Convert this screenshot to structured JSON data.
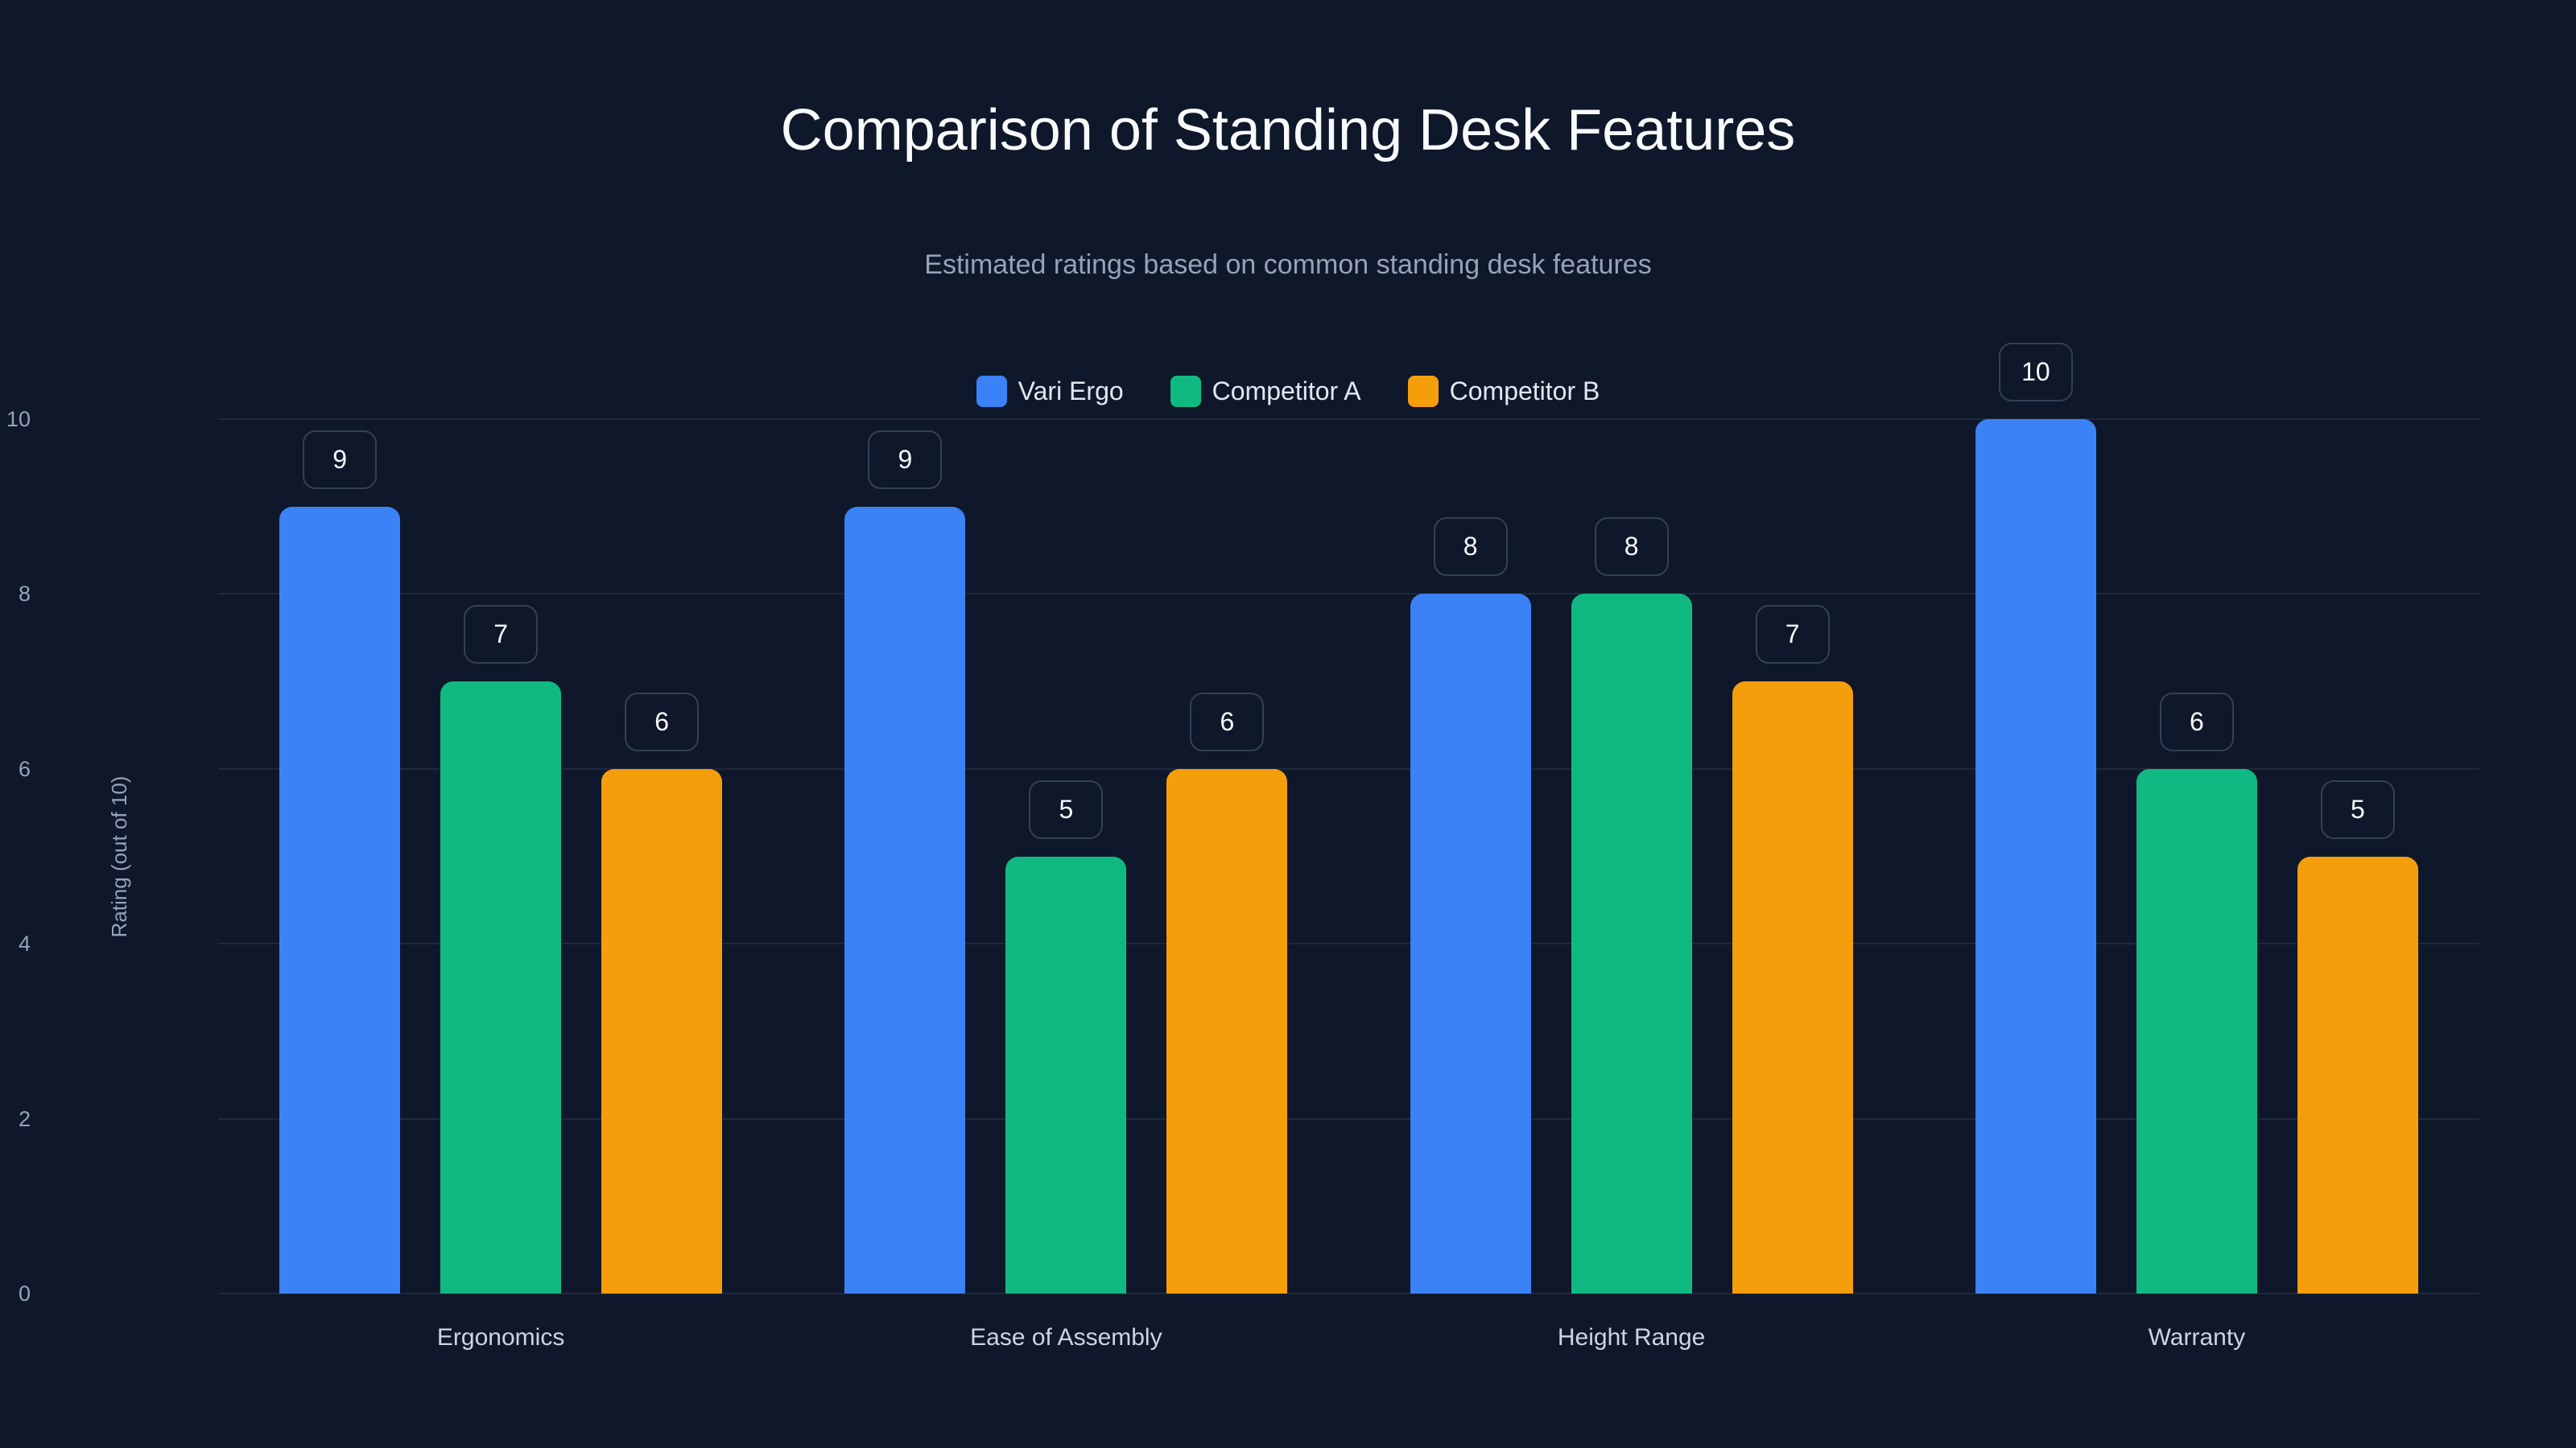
{
  "title": "Comparison of Standing Desk Features",
  "subtitle": "Estimated ratings based on common standing desk features",
  "legend": [
    {
      "label": "Vari Ergo",
      "color": "#3b82f6",
      "icon": "legend-swatch-blue"
    },
    {
      "label": "Competitor A",
      "color": "#10b981",
      "icon": "legend-swatch-green"
    },
    {
      "label": "Competitor B",
      "color": "#f59e0b",
      "icon": "legend-swatch-orange"
    }
  ],
  "y_axis": {
    "title": "Rating (out of 10)",
    "ticks": [
      "0",
      "2",
      "4",
      "6",
      "8",
      "10"
    ]
  },
  "colors": {
    "background": "#0f172a",
    "gridline": "#1e293b",
    "label_border": "#334155"
  },
  "chart_data": {
    "type": "bar",
    "title": "Comparison of Standing Desk Features",
    "subtitle": "Estimated ratings based on common standing desk features",
    "xlabel": "",
    "ylabel": "Rating (out of 10)",
    "ylim": [
      0,
      10
    ],
    "yticks": [
      0,
      2,
      4,
      6,
      8,
      10
    ],
    "grid": true,
    "legend_position": "top-center",
    "categories": [
      "Ergonomics",
      "Ease of Assembly",
      "Height Range",
      "Warranty"
    ],
    "series": [
      {
        "name": "Vari Ergo",
        "color": "#3b82f6",
        "values": [
          9,
          9,
          8,
          10
        ]
      },
      {
        "name": "Competitor A",
        "color": "#10b981",
        "values": [
          7,
          5,
          8,
          6
        ]
      },
      {
        "name": "Competitor B",
        "color": "#f59e0b",
        "values": [
          6,
          6,
          7,
          5
        ]
      }
    ]
  }
}
